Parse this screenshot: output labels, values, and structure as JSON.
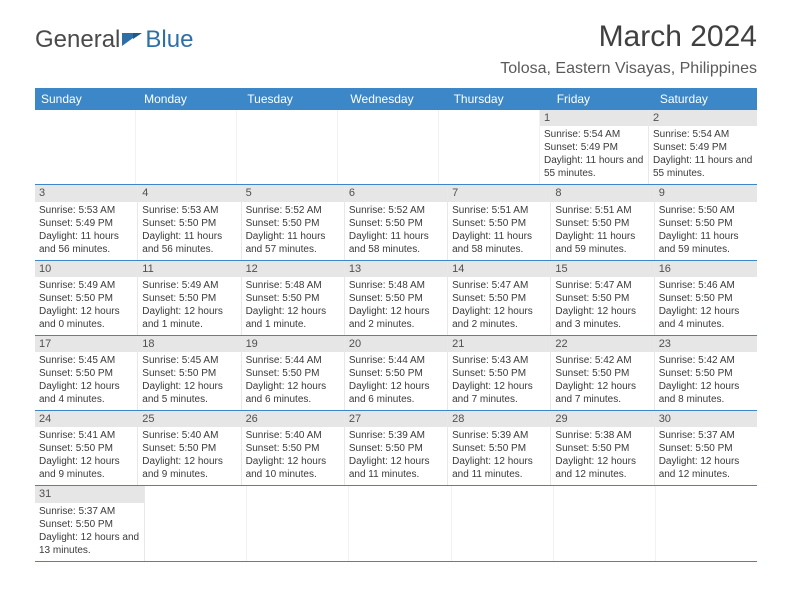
{
  "logo": {
    "text_general": "General",
    "text_blue": "Blue"
  },
  "title": "March 2024",
  "location": "Tolosa, Eastern Visayas, Philippines",
  "colors": {
    "header_bg": "#3b87c8",
    "header_text": "#ffffff",
    "daynum_bg": "#e6e6e6",
    "row_border": "#3b87c8",
    "body_text": "#3a3a3a",
    "title_text": "#404040",
    "location_text": "#5a5a5a",
    "logo_gray": "#4a4a4a",
    "logo_blue": "#2f6fa7",
    "page_bg": "#ffffff"
  },
  "days_of_week": [
    "Sunday",
    "Monday",
    "Tuesday",
    "Wednesday",
    "Thursday",
    "Friday",
    "Saturday"
  ],
  "weeks": [
    [
      null,
      null,
      null,
      null,
      null,
      {
        "num": "1",
        "sunrise": "5:54 AM",
        "sunset": "5:49 PM",
        "daylight": "11 hours and 55 minutes."
      },
      {
        "num": "2",
        "sunrise": "5:54 AM",
        "sunset": "5:49 PM",
        "daylight": "11 hours and 55 minutes."
      }
    ],
    [
      {
        "num": "3",
        "sunrise": "5:53 AM",
        "sunset": "5:49 PM",
        "daylight": "11 hours and 56 minutes."
      },
      {
        "num": "4",
        "sunrise": "5:53 AM",
        "sunset": "5:50 PM",
        "daylight": "11 hours and 56 minutes."
      },
      {
        "num": "5",
        "sunrise": "5:52 AM",
        "sunset": "5:50 PM",
        "daylight": "11 hours and 57 minutes."
      },
      {
        "num": "6",
        "sunrise": "5:52 AM",
        "sunset": "5:50 PM",
        "daylight": "11 hours and 58 minutes."
      },
      {
        "num": "7",
        "sunrise": "5:51 AM",
        "sunset": "5:50 PM",
        "daylight": "11 hours and 58 minutes."
      },
      {
        "num": "8",
        "sunrise": "5:51 AM",
        "sunset": "5:50 PM",
        "daylight": "11 hours and 59 minutes."
      },
      {
        "num": "9",
        "sunrise": "5:50 AM",
        "sunset": "5:50 PM",
        "daylight": "11 hours and 59 minutes."
      }
    ],
    [
      {
        "num": "10",
        "sunrise": "5:49 AM",
        "sunset": "5:50 PM",
        "daylight": "12 hours and 0 minutes."
      },
      {
        "num": "11",
        "sunrise": "5:49 AM",
        "sunset": "5:50 PM",
        "daylight": "12 hours and 1 minute."
      },
      {
        "num": "12",
        "sunrise": "5:48 AM",
        "sunset": "5:50 PM",
        "daylight": "12 hours and 1 minute."
      },
      {
        "num": "13",
        "sunrise": "5:48 AM",
        "sunset": "5:50 PM",
        "daylight": "12 hours and 2 minutes."
      },
      {
        "num": "14",
        "sunrise": "5:47 AM",
        "sunset": "5:50 PM",
        "daylight": "12 hours and 2 minutes."
      },
      {
        "num": "15",
        "sunrise": "5:47 AM",
        "sunset": "5:50 PM",
        "daylight": "12 hours and 3 minutes."
      },
      {
        "num": "16",
        "sunrise": "5:46 AM",
        "sunset": "5:50 PM",
        "daylight": "12 hours and 4 minutes."
      }
    ],
    [
      {
        "num": "17",
        "sunrise": "5:45 AM",
        "sunset": "5:50 PM",
        "daylight": "12 hours and 4 minutes."
      },
      {
        "num": "18",
        "sunrise": "5:45 AM",
        "sunset": "5:50 PM",
        "daylight": "12 hours and 5 minutes."
      },
      {
        "num": "19",
        "sunrise": "5:44 AM",
        "sunset": "5:50 PM",
        "daylight": "12 hours and 6 minutes."
      },
      {
        "num": "20",
        "sunrise": "5:44 AM",
        "sunset": "5:50 PM",
        "daylight": "12 hours and 6 minutes."
      },
      {
        "num": "21",
        "sunrise": "5:43 AM",
        "sunset": "5:50 PM",
        "daylight": "12 hours and 7 minutes."
      },
      {
        "num": "22",
        "sunrise": "5:42 AM",
        "sunset": "5:50 PM",
        "daylight": "12 hours and 7 minutes."
      },
      {
        "num": "23",
        "sunrise": "5:42 AM",
        "sunset": "5:50 PM",
        "daylight": "12 hours and 8 minutes."
      }
    ],
    [
      {
        "num": "24",
        "sunrise": "5:41 AM",
        "sunset": "5:50 PM",
        "daylight": "12 hours and 9 minutes."
      },
      {
        "num": "25",
        "sunrise": "5:40 AM",
        "sunset": "5:50 PM",
        "daylight": "12 hours and 9 minutes."
      },
      {
        "num": "26",
        "sunrise": "5:40 AM",
        "sunset": "5:50 PM",
        "daylight": "12 hours and 10 minutes."
      },
      {
        "num": "27",
        "sunrise": "5:39 AM",
        "sunset": "5:50 PM",
        "daylight": "12 hours and 11 minutes."
      },
      {
        "num": "28",
        "sunrise": "5:39 AM",
        "sunset": "5:50 PM",
        "daylight": "12 hours and 11 minutes."
      },
      {
        "num": "29",
        "sunrise": "5:38 AM",
        "sunset": "5:50 PM",
        "daylight": "12 hours and 12 minutes."
      },
      {
        "num": "30",
        "sunrise": "5:37 AM",
        "sunset": "5:50 PM",
        "daylight": "12 hours and 12 minutes."
      }
    ],
    [
      {
        "num": "31",
        "sunrise": "5:37 AM",
        "sunset": "5:50 PM",
        "daylight": "12 hours and 13 minutes."
      },
      null,
      null,
      null,
      null,
      null,
      null
    ]
  ],
  "labels": {
    "sunrise": "Sunrise:",
    "sunset": "Sunset:",
    "daylight": "Daylight:"
  }
}
